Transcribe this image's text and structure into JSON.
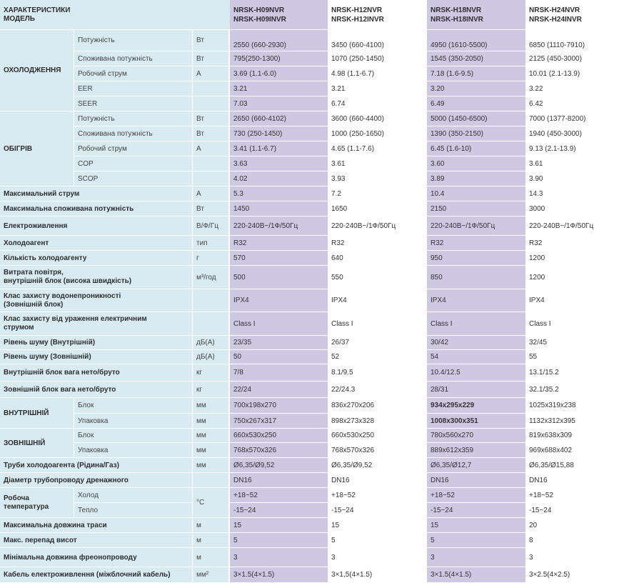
{
  "header": {
    "title_line1": "ХАРАКТЕРИСТИКИ",
    "title_line2": "МОДЕЛЬ",
    "models": [
      {
        "line1": "NRSK-H09NVR",
        "line2": "NRSK-H09INVR"
      },
      {
        "line1": "NRSK-H12NVR",
        "line2": "NRSK-H12INVR"
      },
      {
        "line1": "NRSK-H18NVR",
        "line2": "NRSK-H18INVR"
      },
      {
        "line1": "NRSK-H24NVR",
        "line2": "NRSK-H24INVR"
      }
    ]
  },
  "cooling": {
    "label": "ОХОЛОДЖЕННЯ",
    "rows": [
      {
        "label": "Потужність",
        "unit": "Вт",
        "values": [
          "2550 (660-2930)",
          "3450 (660-4100)",
          "4950 (1610-5500)",
          "6850 (1110-7910)"
        ]
      },
      {
        "label": "Споживана потужність",
        "unit": "Вт",
        "values": [
          "795(250-1300)",
          "1070 (250-1450)",
          "1545 (350-2050)",
          "2125 (450-3000)"
        ]
      },
      {
        "label": "Робочий струм",
        "unit": "А",
        "values": [
          "3.69 (1.1-6.0)",
          "4.98 (1.1-6.7)",
          "7.18 (1.6-9.5)",
          "10.01 (2.1-13.9)"
        ]
      },
      {
        "label": "EER",
        "unit": "",
        "values": [
          "3.21",
          "3.21",
          "3.20",
          "3.22"
        ]
      },
      {
        "label": "SEER",
        "unit": "",
        "values": [
          "7.03",
          "6.74",
          "6.49",
          "6.42"
        ]
      }
    ]
  },
  "heating": {
    "label": "ОБІГРІВ",
    "rows": [
      {
        "label": "Потужність",
        "unit": "Вт",
        "values": [
          "2650 (660-4102)",
          "3600 (660-4400)",
          "5000 (1450-6500)",
          "7000 (1377-8200)"
        ]
      },
      {
        "label": "Споживана потужність",
        "unit": "Вт",
        "values": [
          "730 (250-1450)",
          "1000 (250-1650)",
          "1390 (350-2150)",
          "1940 (450-3000)"
        ]
      },
      {
        "label": "Робочий струм",
        "unit": "А",
        "values": [
          "3.41 (1.1-6.7)",
          "4.65 (1.1-7.6)",
          "6.45 (1.6-10)",
          "9.13 (2.1-13.9)"
        ]
      },
      {
        "label": "COP",
        "unit": "",
        "values": [
          "3.63",
          "3.61",
          "3.60",
          "3.61"
        ]
      },
      {
        "label": "SCOP",
        "unit": "",
        "values": [
          "4.02",
          "3.93",
          "3.89",
          "3.90"
        ]
      }
    ]
  },
  "general_a": [
    {
      "label": "Максимальний струм",
      "unit": "А",
      "values": [
        "5.3",
        "7.2",
        "10.4",
        "14.3"
      ]
    },
    {
      "label": "Максимальна споживана потужність",
      "unit": "Вт",
      "values": [
        "1450",
        "1650",
        "2150",
        "3000"
      ]
    },
    {
      "label": "Електроживлення",
      "unit": "В/Ф/Гц",
      "values": [
        "220-240В~/1Ф/50Гц",
        "220-240В~/1Ф/50Гц",
        "220-240В~/1Ф/50Гц",
        "220-240В~/1Ф/50Гц"
      ]
    },
    {
      "label": "Холодоагент",
      "unit": "тип",
      "values": [
        "R32",
        "R32",
        "R32",
        "R32"
      ]
    },
    {
      "label": "Кількість холодоагенту",
      "unit": "г",
      "values": [
        "570",
        "640",
        "950",
        "1200"
      ]
    }
  ],
  "airflow": {
    "line1": "Витрата повітря,",
    "line2": "внутрішній блок (висока швидкість)",
    "unit": "м³/год",
    "values": [
      "500",
      "550",
      "850",
      "1200"
    ]
  },
  "waterproof": {
    "line1": "Клас захисту водонепроникності",
    "line2": "(Зовнішній блок)",
    "unit": "",
    "values": [
      "IPX4",
      "IPX4",
      "IPX4",
      "IPX4"
    ]
  },
  "shock": {
    "line1": "Клас захисту від ураження електричним",
    "line2": "струмом",
    "unit": "",
    "values": [
      "Class I",
      "Class I",
      "Class I",
      "Class I"
    ]
  },
  "general_b": [
    {
      "label": "Рівень шуму (Внутрішній)",
      "unit": "дБ(А)",
      "values": [
        "23/35",
        "26/37",
        "30/42",
        "32/45"
      ]
    },
    {
      "label": "Рівень шуму (Зовнішній)",
      "unit": "дБ(А)",
      "values": [
        "50",
        "52",
        "54",
        "55"
      ]
    },
    {
      "label": "Внутрішній блок вага нето/бруто",
      "unit": "кг",
      "values": [
        "7/8",
        "8.1/9.5",
        "10.4/12.5",
        "13.1/15.2"
      ]
    },
    {
      "label": "Зовнішній блок вага нето/бруто",
      "unit": "кг",
      "values": [
        "22/24",
        "22/24.3",
        "28/31",
        "32.1/35.2"
      ]
    }
  ],
  "indoor": {
    "label": "ВНУТРІШНІЙ",
    "rows": [
      {
        "label": "Блок",
        "unit": "мм",
        "values": [
          "700x198x270",
          "836x270x206",
          "934x295x229",
          "1025x319x238"
        ]
      },
      {
        "label": "Упаковка",
        "unit": "мм",
        "values": [
          "750x267x317",
          "898x273x328",
          "1008x300x351",
          "1132x312x395"
        ]
      }
    ]
  },
  "outdoor": {
    "label": "ЗОВНІШНІЙ",
    "rows": [
      {
        "label": "Блок",
        "unit": "мм",
        "values": [
          "660x530x250",
          "660x530x250",
          "780x560x270",
          "819x638x309"
        ]
      },
      {
        "label": "Упаковка",
        "unit": "мм",
        "values": [
          "768x570x326",
          "768x570x326",
          "889x612x359",
          "969x688x402"
        ]
      }
    ]
  },
  "general_c": [
    {
      "label": "Труби холодоагента (Рідина/Газ)",
      "unit": "мм",
      "values": [
        "Ø6,35/Ø9,52",
        "Ø6,35/Ø9,52",
        "Ø6,35/Ø12,7",
        "Ø6,35/Ø15,88"
      ]
    },
    {
      "label": "Діаметр трубопроводу дренажного",
      "unit": "",
      "values": [
        "DN16",
        "DN16",
        "DN16",
        "DN16"
      ]
    }
  ],
  "worktemp": {
    "line1": "Робоча",
    "line2": "температура",
    "unit": "°C",
    "rows": [
      {
        "label": "Холод",
        "values": [
          "+18~52",
          "+18~52",
          "+18~52",
          "+18~52"
        ]
      },
      {
        "label": "Тепло",
        "values": [
          "-15~24",
          "-15~24",
          "-15~24",
          "-15~24"
        ]
      }
    ]
  },
  "general_d": [
    {
      "label": "Максимальна довжина траси",
      "unit": "м",
      "values": [
        "15",
        "15",
        "15",
        "20"
      ]
    },
    {
      "label": "Макс. перепад висот",
      "unit": "м",
      "values": [
        "5",
        "5",
        "5",
        "8"
      ]
    },
    {
      "label": "Мінімальна довжина фреонопроводу",
      "unit": "м",
      "values": [
        "3",
        "3",
        "3",
        "3"
      ]
    },
    {
      "label": "Кабель електроживлення (міжблочний кабель)",
      "unit": "мм²",
      "values": [
        "3×1.5(4×1.5)",
        "3×1,5(4×1.5)",
        "3×1.5(4×1.5)",
        "3×2.5(4×2.5)"
      ]
    }
  ]
}
